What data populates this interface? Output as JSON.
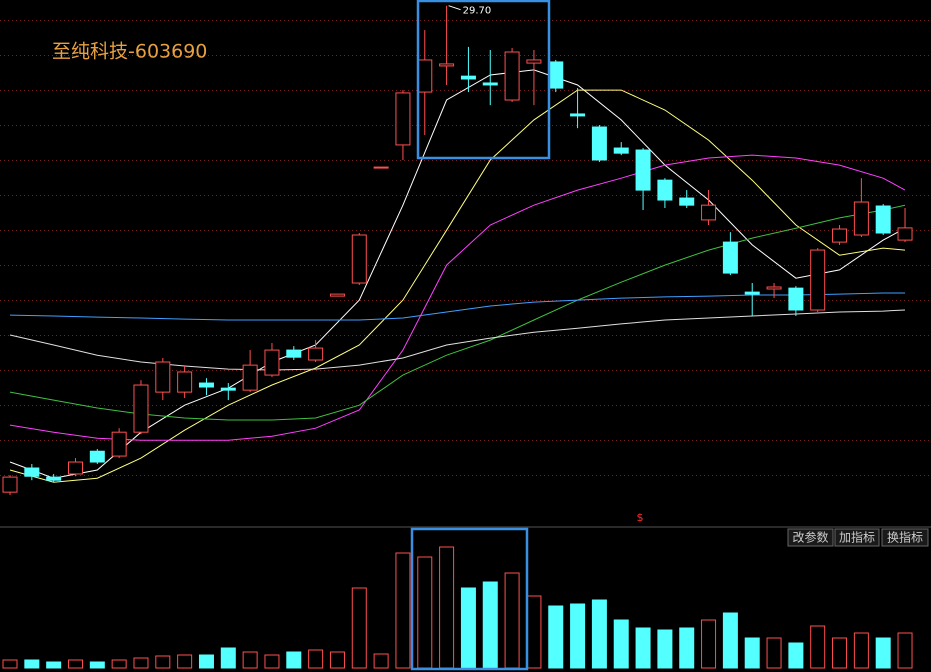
{
  "chart_data": {
    "type": "candlestick",
    "title": "至纯科技-603690",
    "high_label": "29.70",
    "marker": "$",
    "buttons": [
      "改参数",
      "加指标",
      "换指标"
    ],
    "up_color": "#ff5050",
    "down_color": "#54ffff",
    "ylim": [
      11.6,
      29.9
    ],
    "open": [
      12.58,
      13.43,
      13.11,
      13.22,
      14.02,
      13.85,
      14.69,
      16.1,
      16.1,
      16.42,
      16.24,
      16.17,
      16.7,
      17.58,
      17.23,
      19.48,
      19.94,
      23.99,
      24.8,
      26.66,
      27.58,
      27.22,
      26.98,
      26.38,
      27.68,
      27.72,
      25.89,
      25.43,
      24.69,
      24.62,
      23.56,
      22.93,
      22.16,
      21.38,
      19.62,
      19.73,
      19.76,
      18.99,
      21.38,
      21.63,
      22.65,
      21.45
    ],
    "close": [
      13.11,
      13.14,
      13.0,
      13.64,
      13.64,
      14.69,
      16.35,
      17.16,
      16.81,
      16.28,
      16.17,
      17.05,
      17.58,
      17.33,
      17.65,
      19.55,
      21.63,
      24.02,
      26.63,
      27.79,
      27.65,
      27.12,
      26.91,
      28.07,
      27.79,
      26.8,
      25.82,
      24.27,
      24.51,
      23.21,
      22.86,
      22.68,
      22.68,
      20.29,
      19.55,
      19.8,
      18.99,
      21.1,
      21.84,
      22.79,
      21.7,
      21.88
    ],
    "high": [
      13.18,
      13.57,
      13.22,
      13.78,
      14.1,
      14.83,
      16.52,
      17.3,
      17.05,
      16.59,
      16.42,
      17.58,
      17.83,
      17.72,
      17.93,
      19.55,
      21.7,
      24.02,
      26.73,
      28.84,
      29.7,
      28.25,
      28.14,
      28.21,
      28.14,
      27.79,
      26.8,
      25.5,
      24.9,
      24.69,
      23.63,
      23.21,
      23.21,
      21.73,
      19.94,
      19.94,
      19.83,
      21.17,
      21.98,
      23.63,
      22.72,
      22.58
    ],
    "low": [
      12.48,
      13.0,
      12.93,
      13.14,
      13.57,
      13.78,
      14.62,
      15.82,
      15.89,
      15.99,
      15.82,
      16.1,
      16.63,
      17.23,
      17.16,
      19.48,
      19.87,
      23.99,
      24.27,
      25.15,
      26.91,
      26.66,
      26.2,
      26.31,
      26.2,
      26.66,
      25.39,
      24.2,
      24.44,
      22.51,
      22.58,
      22.58,
      21.98,
      20.22,
      18.78,
      19.41,
      18.78,
      18.92,
      21.28,
      21.56,
      21.63,
      21.38
    ],
    "volume": [
      8,
      8,
      6,
      8,
      6,
      8,
      10,
      12,
      13,
      13,
      20,
      16,
      13,
      16,
      18,
      16,
      80,
      14,
      115,
      111,
      121,
      80,
      86,
      95,
      72,
      62,
      64,
      68,
      48,
      40,
      38,
      40,
      48,
      55,
      30,
      30,
      25,
      42,
      30,
      35,
      30,
      35
    ],
    "vlim": [
      0,
      140
    ],
    "lines": {
      "x": [
        0,
        2,
        4,
        6,
        8,
        10,
        12,
        14,
        16,
        18,
        20,
        22,
        24,
        26,
        28,
        30,
        32,
        34,
        36,
        38,
        40,
        41
      ],
      "series": [
        {
          "color": "#ffffff",
          "values": [
            13.64,
            13.07,
            13.36,
            14.69,
            15.64,
            16.24,
            17.16,
            17.76,
            19.34,
            22.68,
            26.38,
            27.26,
            27.44,
            26.91,
            25.68,
            24.09,
            22.86,
            21.28,
            20.11,
            20.4,
            21.45,
            21.87
          ]
        },
        {
          "color": "#ffff7f",
          "values": [
            13.36,
            12.93,
            13.07,
            13.78,
            14.76,
            15.64,
            16.35,
            16.95,
            17.76,
            19.34,
            21.8,
            24.27,
            25.68,
            26.73,
            26.73,
            26.03,
            24.97,
            23.56,
            21.98,
            20.92,
            21.17,
            21.1
          ]
        },
        {
          "color": "#ff40ff",
          "values": [
            14.94,
            14.69,
            14.48,
            14.41,
            14.41,
            14.41,
            14.55,
            14.83,
            15.47,
            17.58,
            20.57,
            21.98,
            22.68,
            23.21,
            23.63,
            24.09,
            24.34,
            24.44,
            24.34,
            24.09,
            23.63,
            23.21
          ]
        },
        {
          "color": "#40c040",
          "values": [
            16.1,
            15.82,
            15.54,
            15.33,
            15.19,
            15.12,
            15.12,
            15.19,
            15.64,
            16.7,
            17.4,
            17.93,
            18.64,
            19.34,
            19.97,
            20.57,
            21.1,
            21.52,
            21.87,
            22.23,
            22.51,
            22.68
          ]
        },
        {
          "color": "#40a0ff",
          "values": [
            18.81,
            18.78,
            18.74,
            18.71,
            18.67,
            18.64,
            18.64,
            18.64,
            18.64,
            18.71,
            18.92,
            19.13,
            19.27,
            19.34,
            19.41,
            19.45,
            19.48,
            19.52,
            19.52,
            19.55,
            19.59,
            19.59
          ]
        },
        {
          "color": "#e0e0e0",
          "values": [
            18.11,
            17.76,
            17.4,
            17.16,
            17.02,
            16.91,
            16.88,
            16.91,
            17.05,
            17.3,
            17.76,
            18.0,
            18.21,
            18.35,
            18.5,
            18.64,
            18.71,
            18.78,
            18.85,
            18.92,
            18.95,
            18.99
          ]
        }
      ]
    }
  }
}
